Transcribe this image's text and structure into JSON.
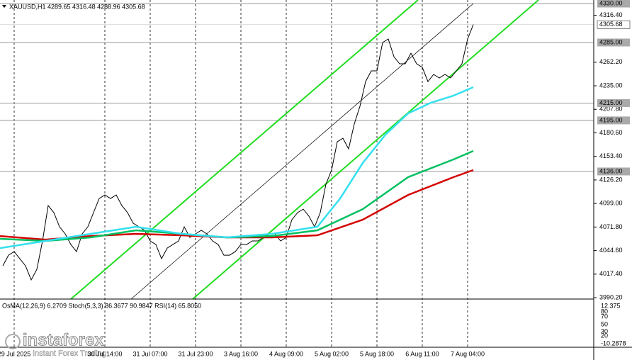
{
  "chart_data": {
    "type": "line",
    "title": "XAUUSD,H1  4289.65 4316.48 4288.96 4305.68",
    "indicator_title": "OsMA(12,26,9) 6.2709  Stoch(5,3,3) 86.3677 90.9847  RSI(14) 65.8050",
    "logo": "instaforex",
    "logo_tagline": "Instant Forex Trading",
    "xlim": [
      0,
      209.5
    ],
    "ylim": [
      3988.6,
      4334.1
    ],
    "yticks": [
      {
        "value": 4316.4,
        "label": "4316.40"
      },
      {
        "value": 4262.2,
        "label": "4262.20"
      },
      {
        "value": 4235.0,
        "label": "4235.00"
      },
      {
        "value": 4207.8,
        "label": "4207.80"
      },
      {
        "value": 4180.6,
        "label": "4180.60"
      },
      {
        "value": 4153.4,
        "label": "4153.40"
      },
      {
        "value": 4126.2,
        "label": "4126.20"
      },
      {
        "value": 4099.0,
        "label": "4099.00"
      },
      {
        "value": 4071.8,
        "label": "4071.80"
      },
      {
        "value": 4044.6,
        "label": "4044.60"
      },
      {
        "value": 4017.4,
        "label": "4017.40"
      },
      {
        "value": 3990.2,
        "label": "3990.20"
      }
    ],
    "xticks": [
      {
        "value": 5,
        "label": "29 Jul 2025"
      },
      {
        "value": 37,
        "label": "30 Jul 14:00"
      },
      {
        "value": 53,
        "label": "31 Jul 07:00"
      },
      {
        "value": 69,
        "label": "31 Jul 23:00"
      },
      {
        "value": 85,
        "label": "3 Aug 16:00"
      },
      {
        "value": 101,
        "label": "4 Aug 09:00"
      },
      {
        "value": 117,
        "label": "5 Aug 02:00"
      },
      {
        "value": 133,
        "label": "5 Aug 18:00"
      },
      {
        "value": 149,
        "label": "6 Aug 11:00"
      },
      {
        "value": 165,
        "label": "7 Aug 04:00"
      }
    ],
    "levels": [
      {
        "value": 4330.0,
        "label": "4330.00"
      },
      {
        "value": 4285.0,
        "label": "4285.00"
      },
      {
        "value": 4215.0,
        "label": "4215.00"
      },
      {
        "value": 4195.0,
        "label": "4195.00"
      },
      {
        "value": 4136.0,
        "label": "4136.00"
      }
    ],
    "current_price": {
      "value": 4305.68,
      "label": "4305.68"
    },
    "oscillator_labels": [
      "12.375",
      "80",
      "70",
      "50",
      "30",
      "20",
      "-10.2878"
    ],
    "series": [
      {
        "name": "XAUUSD",
        "color": "#000000",
        "x": [
          1,
          3,
          5,
          7,
          9,
          11,
          13,
          15,
          17,
          19,
          21,
          23,
          25,
          27,
          29,
          31,
          33,
          35,
          37,
          39,
          41,
          43,
          45,
          47,
          49,
          51,
          53,
          55,
          57,
          59,
          61,
          63,
          65,
          67,
          69,
          71,
          73,
          75,
          77,
          79,
          81,
          83,
          85,
          87,
          89,
          91,
          93,
          95,
          97,
          99,
          101,
          103,
          105,
          107,
          109,
          111,
          113,
          115,
          117,
          119,
          121,
          123,
          125,
          127,
          129,
          131,
          133,
          135,
          137,
          139,
          141,
          143,
          145,
          147,
          149,
          151,
          153,
          155,
          157,
          159,
          161,
          163,
          165,
          167
        ],
        "values": [
          4027.0,
          4039.3,
          4043.4,
          4035.2,
          4027.0,
          4010.7,
          4022.9,
          4055.7,
          4096.6,
          4088.5,
          4072.1,
          4063.9,
          4051.6,
          4043.4,
          4063.9,
          4072.1,
          4088.5,
          4104.8,
          4108.9,
          4104.8,
          4108.9,
          4096.6,
          4088.5,
          4076.2,
          4072.1,
          4068.0,
          4055.7,
          4051.6,
          4035.2,
          4047.5,
          4051.6,
          4055.7,
          4072.1,
          4059.8,
          4063.9,
          4068.0,
          4063.9,
          4055.7,
          4051.6,
          4039.3,
          4039.3,
          4043.4,
          4051.6,
          4051.6,
          4055.7,
          4055.7,
          4059.8,
          4063.9,
          4063.9,
          4055.7,
          4059.8,
          4080.3,
          4088.5,
          4092.5,
          4084.4,
          4072.1,
          4088.5,
          4121.2,
          4137.6,
          4170.3,
          4174.4,
          4162.1,
          4190.8,
          4211.3,
          4239.9,
          4252.2,
          4252.2,
          4285.0,
          4289.1,
          4268.6,
          4260.4,
          4260.4,
          4272.7,
          4260.4,
          4256.3,
          4239.9,
          4248.1,
          4244.0,
          4248.1,
          4244.0,
          4252.2,
          4260.4,
          4289.1,
          4305.68
        ]
      },
      {
        "name": "MA slow",
        "color": "#d40000",
        "x": [
          0,
          16,
          32,
          48,
          64,
          80,
          96,
          112,
          128,
          144,
          160,
          167
        ],
        "values": [
          4061.4,
          4057.3,
          4061.4,
          4063.9,
          4062.3,
          4059.8,
          4059.8,
          4062.3,
          4080.3,
          4108.9,
          4129.4,
          4137.6
        ]
      },
      {
        "name": "MA medium",
        "color": "#00c060",
        "x": [
          0,
          16,
          32,
          48,
          64,
          80,
          96,
          112,
          128,
          144,
          160,
          167
        ],
        "values": [
          4058.2,
          4055.7,
          4059.8,
          4068.0,
          4063.9,
          4059.8,
          4061.4,
          4068.0,
          4092.5,
          4129.4,
          4149.9,
          4159.7
        ]
      },
      {
        "name": "MA fast",
        "color": "#33e0f0",
        "x": [
          0,
          16,
          32,
          48,
          64,
          80,
          96,
          112,
          120,
          128,
          136,
          144,
          152,
          160,
          167
        ],
        "values": [
          4047.5,
          4055.7,
          4063.9,
          4072.1,
          4063.9,
          4059.8,
          4063.9,
          4072.1,
          4104.8,
          4145.8,
          4178.5,
          4203.1,
          4215.4,
          4223.6,
          4233.4
        ]
      }
    ]
  }
}
